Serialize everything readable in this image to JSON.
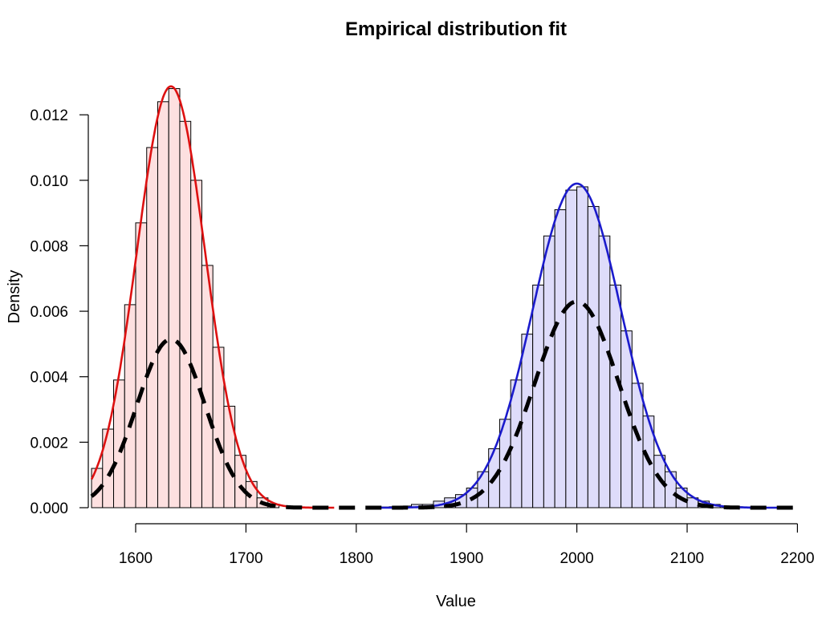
{
  "chart_data": {
    "type": "histogram",
    "title": "Empirical distribution fit",
    "xlabel": "Value",
    "ylabel": "Density",
    "xlim": [
      1560,
      2200
    ],
    "ylim": [
      0,
      0.013
    ],
    "x_ticks": [
      1600,
      1700,
      1800,
      1900,
      2000,
      2100,
      2200
    ],
    "x_tick_labels": [
      "1600",
      "1700",
      "1800",
      "1900",
      "2000",
      "2100",
      "2200"
    ],
    "y_ticks": [
      0,
      0.002,
      0.004,
      0.006,
      0.008,
      0.01,
      0.012
    ],
    "y_tick_labels": [
      "0.000",
      "0.002",
      "0.004",
      "0.006",
      "0.008",
      "0.010",
      "0.012"
    ],
    "grid": false,
    "bin_width": 10,
    "histograms": [
      {
        "start": 1560,
        "densities": [
          0.0012,
          0.0024,
          0.0039,
          0.0062,
          0.0087,
          0.011,
          0.0124,
          0.0128,
          0.0118,
          0.01,
          0.0074,
          0.0049,
          0.0031,
          0.0016,
          0.0008,
          0.0003,
          0.0001
        ],
        "fill": "#fde0e0",
        "edge": "#000000"
      },
      {
        "start": 1820,
        "densities": [
          2e-05,
          3e-05,
          5e-05,
          0.0001,
          0.0001,
          0.0002,
          0.0003,
          0.0004,
          0.0006,
          0.0011,
          0.0018,
          0.0027,
          0.0039,
          0.0053,
          0.0068,
          0.0083,
          0.0091,
          0.0097,
          0.0098,
          0.0092,
          0.0083,
          0.0068,
          0.0054,
          0.0038,
          0.0028,
          0.0016,
          0.0011,
          0.0006,
          0.0003,
          0.0002,
          0.0001,
          5e-05,
          3e-05,
          1e-05
        ],
        "fill": "#dedcfa",
        "edge": "#000000"
      }
    ],
    "curves": [
      {
        "kind": "normal",
        "mean": 1632,
        "sd": 31,
        "from": 1560,
        "to": 1780,
        "color": "#dd1111",
        "style": "solid"
      },
      {
        "kind": "normal",
        "mean": 2000,
        "sd": 40.3,
        "from": 1810,
        "to": 2190,
        "color": "#1b1bcc",
        "style": "solid"
      },
      {
        "kind": "mixture",
        "components": [
          {
            "weight": 0.4,
            "mean": 1632,
            "sd": 31
          },
          {
            "weight": 0.6,
            "mean": 2000,
            "sd": 38
          }
        ],
        "from": 1560,
        "to": 2200,
        "color": "#000000",
        "style": "dashed"
      }
    ]
  }
}
